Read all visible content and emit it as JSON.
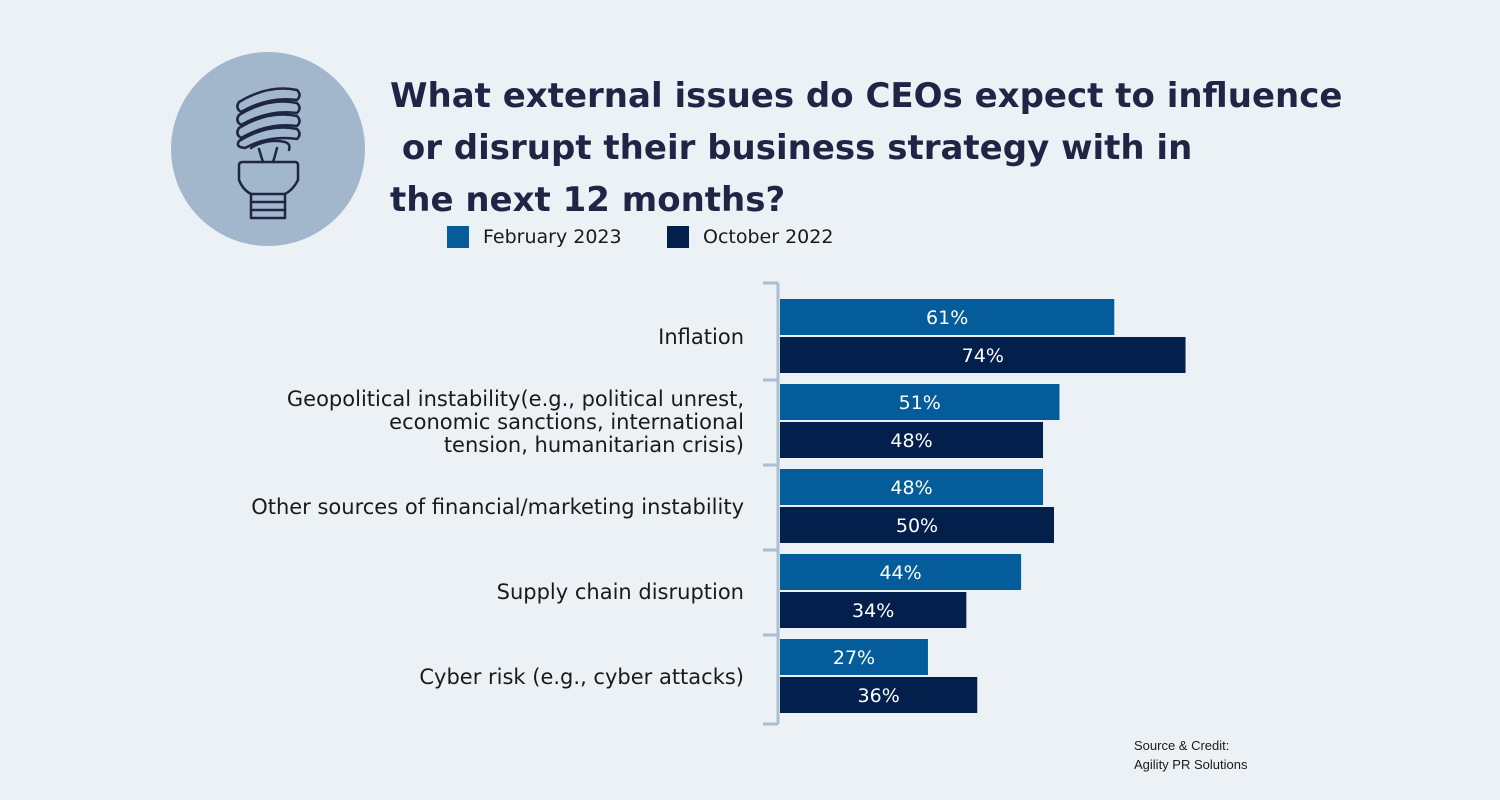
{
  "title_lines": [
    "What external issues do CEOs expect to influence",
    " or disrupt their business strategy with in",
    "the next 12 months?"
  ],
  "icon": "lightbulb-icon",
  "legend": [
    {
      "label": "February 2023",
      "color": "#045d9a"
    },
    {
      "label": "October 2022",
      "color": "#031f4b"
    }
  ],
  "chart_data": {
    "type": "bar",
    "orientation": "horizontal",
    "categories": [
      [
        "Inflation"
      ],
      [
        "Geopolitical instability(e.g., political unrest,",
        "economic sanctions, international",
        "tension, humanitarian crisis)"
      ],
      [
        "Other sources of financial/marketing instability"
      ],
      [
        "Supply chain disruption"
      ],
      [
        "Cyber risk (e.g., cyber attacks)"
      ]
    ],
    "series": [
      {
        "name": "February 2023",
        "color": "#045d9a",
        "values": [
          61,
          51,
          48,
          44,
          27
        ],
        "labels": [
          "61%",
          "51%",
          "48%",
          "44%",
          "27%"
        ]
      },
      {
        "name": "October 2022",
        "color": "#031f4b",
        "values": [
          74,
          48,
          50,
          34,
          36
        ],
        "labels": [
          "74%",
          "48%",
          "50%",
          "34%",
          "36%"
        ]
      }
    ],
    "xlim": [
      0,
      100
    ],
    "legend_position": "top-left",
    "grid": false
  },
  "source": [
    "Source & Credit:",
    "Agility PR Solutions"
  ]
}
